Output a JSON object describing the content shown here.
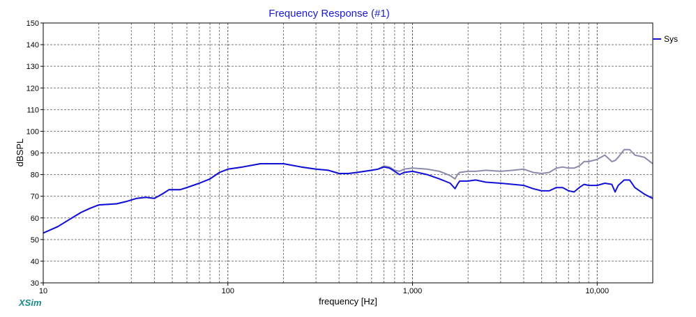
{
  "brand": "XSim",
  "colors": {
    "title": "#1a1ad4",
    "series_primary": "#1010d8",
    "series_secondary": "#8a8aaa",
    "grid": "#7a7a7a",
    "brand": "#1a8a8a"
  },
  "chart_data": {
    "type": "line",
    "title": "Frequency Response (#1)",
    "xlabel": "frequency [Hz]",
    "ylabel": "dBSPL",
    "xscale": "log",
    "xlim": [
      10,
      20000
    ],
    "ylim": [
      30,
      150
    ],
    "x_ticks": [
      10,
      100,
      1000,
      10000
    ],
    "x_tick_labels": [
      "10",
      "100",
      "1,000",
      "10,000"
    ],
    "y_ticks": [
      30,
      40,
      50,
      60,
      70,
      80,
      90,
      100,
      110,
      120,
      130,
      140,
      150
    ],
    "grid": true,
    "legend_position": "top-right",
    "legend_entry": "Sys",
    "series": [
      {
        "name": "Sys",
        "x": [
          10,
          12,
          14,
          16,
          18,
          20,
          25,
          28,
          32,
          36,
          40,
          44,
          48,
          55,
          60,
          70,
          80,
          90,
          100,
          120,
          150,
          200,
          250,
          300,
          350,
          400,
          450,
          500,
          550,
          600,
          650,
          700,
          750,
          800,
          850,
          900,
          1000,
          1200,
          1400,
          1600,
          1700,
          1750,
          1800,
          2000,
          2200,
          2500,
          3000,
          3500,
          4000,
          4500,
          5000,
          5500,
          6000,
          6500,
          7000,
          7500,
          8000,
          8500,
          9000,
          10000,
          11000,
          12000,
          12500,
          13000,
          14000,
          15000,
          16000,
          18000,
          20000
        ],
        "y": [
          53,
          56,
          59.5,
          62.5,
          64.5,
          66,
          66.5,
          67.5,
          69,
          69.5,
          69,
          71,
          73,
          73,
          74,
          76,
          78,
          81,
          82.5,
          83.5,
          85,
          85,
          83.5,
          82.5,
          82,
          80.5,
          80.5,
          81,
          81.5,
          82,
          82.5,
          83.5,
          83,
          81.5,
          80,
          81,
          81.5,
          80,
          78,
          76,
          73.5,
          75.5,
          77,
          77,
          77.5,
          76.5,
          76,
          75.5,
          75,
          73.5,
          72.5,
          72.5,
          74,
          74,
          72.5,
          72,
          74,
          75.5,
          75,
          75,
          76,
          75.5,
          72,
          75,
          77.5,
          77.5,
          74,
          71,
          69
        ]
      },
      {
        "name": "",
        "x": [
          10,
          12,
          14,
          16,
          18,
          20,
          25,
          28,
          32,
          36,
          40,
          44,
          48,
          55,
          60,
          70,
          80,
          90,
          100,
          120,
          150,
          200,
          250,
          300,
          350,
          400,
          450,
          500,
          550,
          600,
          650,
          700,
          750,
          800,
          850,
          900,
          1000,
          1200,
          1400,
          1600,
          1700,
          1750,
          1800,
          2000,
          2200,
          2500,
          3000,
          3500,
          4000,
          4500,
          5000,
          5500,
          6000,
          6500,
          7000,
          7500,
          8000,
          8500,
          9000,
          10000,
          11000,
          12000,
          12500,
          13000,
          14000,
          15000,
          16000,
          18000,
          20000
        ],
        "y": [
          53,
          56,
          59.5,
          62.5,
          64.5,
          66,
          66.5,
          67.5,
          69,
          69.5,
          69,
          71,
          73,
          73,
          74,
          76,
          78,
          81,
          82.5,
          83.5,
          85,
          85,
          83.5,
          82.5,
          82,
          80.5,
          80.5,
          81,
          81.5,
          82,
          82.5,
          84,
          83.5,
          82,
          81.5,
          82.5,
          83,
          82.5,
          81.5,
          79.5,
          78,
          80,
          81,
          81.5,
          81.5,
          82,
          81.5,
          82,
          82.5,
          81,
          80.5,
          81,
          83,
          83.5,
          83,
          83,
          84,
          86,
          86,
          87,
          89,
          86,
          86.5,
          88,
          91.5,
          91.5,
          89,
          88,
          85
        ]
      }
    ]
  }
}
